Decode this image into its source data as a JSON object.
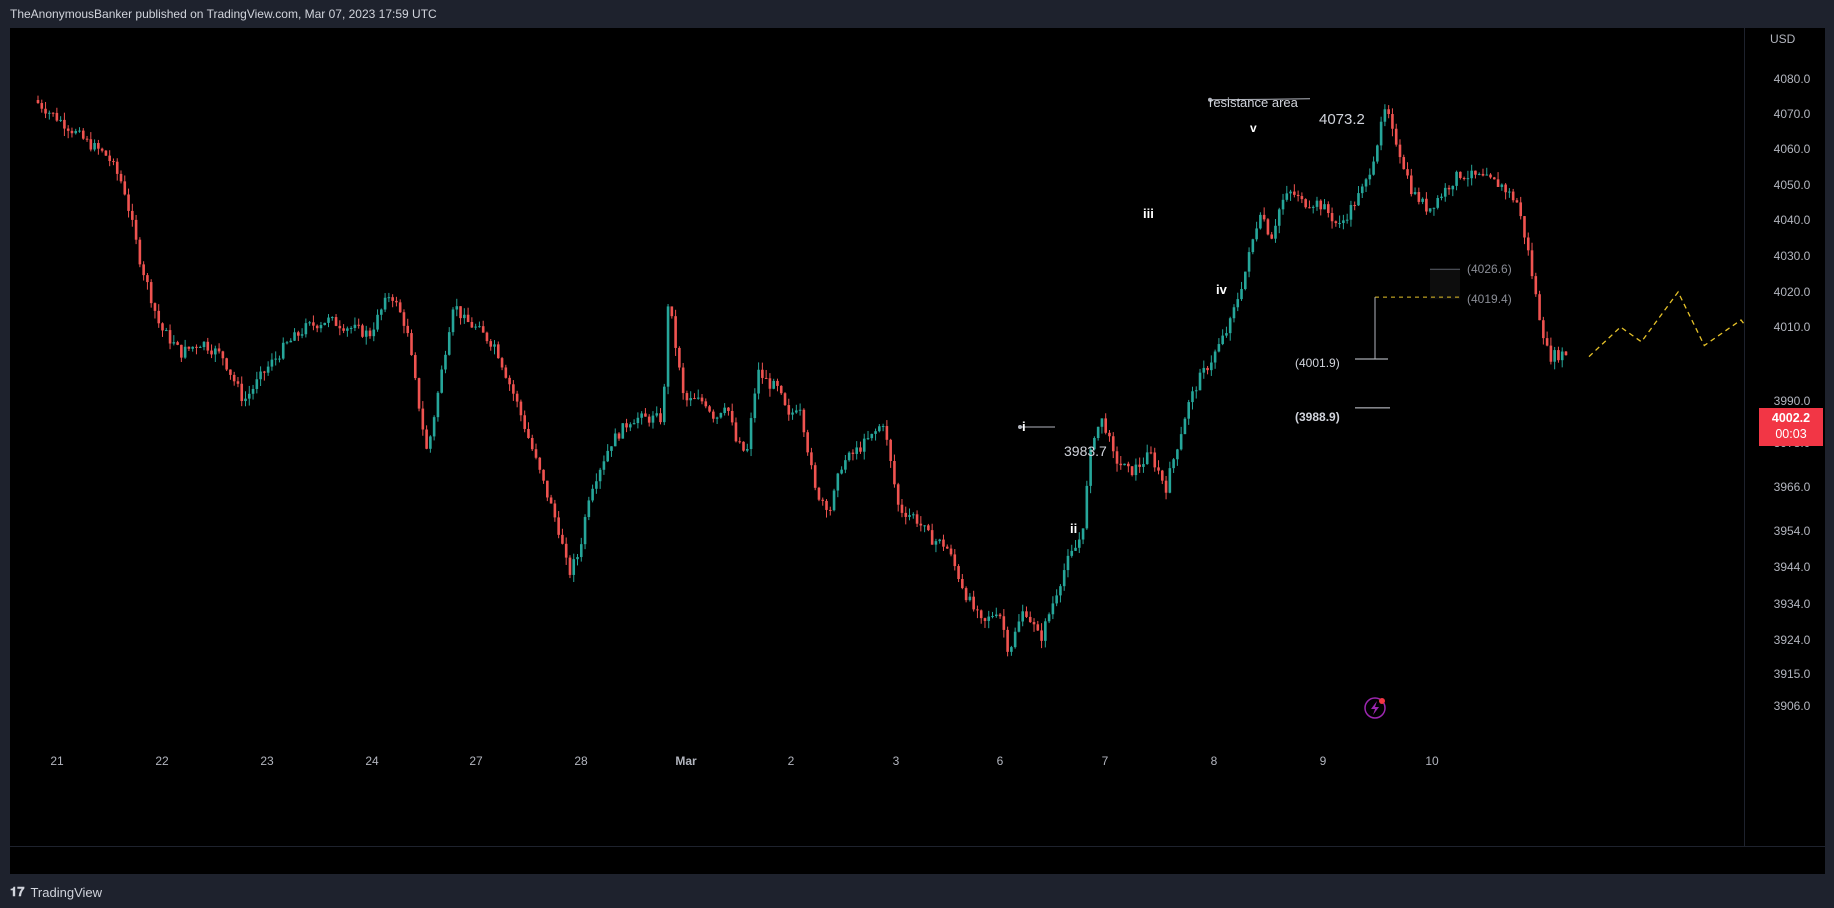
{
  "header": {
    "publish_line": "TheAnonymousBanker published on TradingView.com, Mar 07, 2023 17:59 UTC"
  },
  "footer": {
    "brand": "TradingView"
  },
  "price_axis": {
    "currency": "USD",
    "labels": [
      "4080.0",
      "4070.0",
      "4060.0",
      "4050.0",
      "4040.0",
      "4030.0",
      "4020.0",
      "4010.0",
      "3990.0",
      "3978.0",
      "3966.0",
      "3954.0",
      "3944.0",
      "3934.0",
      "3924.0",
      "3915.0",
      "3906.0"
    ],
    "last_price": "4002.2",
    "countdown": "00:03",
    "last_price_color": "#f23645"
  },
  "time_axis": {
    "labels": [
      "21",
      "22",
      "23",
      "24",
      "27",
      "28",
      "Mar",
      "2",
      "3",
      "6",
      "7",
      "8",
      "9",
      "10"
    ]
  },
  "annotations": {
    "resistance_label": "resistance area",
    "resistance_value": "4073.2",
    "wave_i": "i",
    "wave_ii": "ii",
    "wave_iii": "iii",
    "wave_iv": "iv",
    "wave_v": "v",
    "level_i": "3983.7",
    "target_1": "(4026.6)",
    "target_2": "(4019.4)",
    "level_current": "(4001.9)",
    "level_support": "(3988.9)"
  },
  "colors": {
    "up": "#26a69a",
    "down": "#ef5350",
    "projection": "#e6c229",
    "background": "#000000",
    "frame": "#1e222d"
  },
  "icons": {
    "lightning": "lightning-icon",
    "tv_logo": "tradingview-logo-icon"
  },
  "chart_data": {
    "type": "candlestick",
    "instrument_currency": "USD",
    "x_labels": [
      "21",
      "22",
      "23",
      "24",
      "27",
      "28",
      "Mar",
      "2",
      "3",
      "6",
      "7",
      "8",
      "9",
      "10"
    ],
    "ylim": [
      3900,
      4090
    ],
    "price_path": [
      [
        0.0,
        4074
      ],
      [
        0.3,
        4067
      ],
      [
        0.5,
        4062
      ],
      [
        0.7,
        4058
      ],
      [
        0.85,
        4050
      ],
      [
        1.0,
        4030
      ],
      [
        1.2,
        4010
      ],
      [
        1.4,
        4003
      ],
      [
        1.6,
        4006
      ],
      [
        1.8,
        4002
      ],
      [
        2.0,
        3990
      ],
      [
        2.2,
        3998
      ],
      [
        2.4,
        4005
      ],
      [
        2.6,
        4010
      ],
      [
        2.8,
        4012
      ],
      [
        3.0,
        4010
      ],
      [
        3.2,
        4008
      ],
      [
        3.4,
        4020
      ],
      [
        3.55,
        4010
      ],
      [
        3.75,
        3975
      ],
      [
        3.9,
        4000
      ],
      [
        4.0,
        4017
      ],
      [
        4.1,
        4012
      ],
      [
        4.2,
        4010
      ],
      [
        4.4,
        4005
      ],
      [
        4.6,
        3990
      ],
      [
        4.8,
        3972
      ],
      [
        5.0,
        3955
      ],
      [
        5.1,
        3942
      ],
      [
        5.2,
        3948
      ],
      [
        5.3,
        3965
      ],
      [
        5.5,
        3978
      ],
      [
        5.7,
        3985
      ],
      [
        5.9,
        3985
      ],
      [
        6.0,
        3985
      ],
      [
        6.05,
        4018
      ],
      [
        6.2,
        3990
      ],
      [
        6.4,
        3990
      ],
      [
        6.5,
        3985
      ],
      [
        6.6,
        3990
      ],
      [
        6.7,
        3978
      ],
      [
        6.8,
        3975
      ],
      [
        6.9,
        3998
      ],
      [
        7.0,
        3995
      ],
      [
        7.1,
        3993
      ],
      [
        7.2,
        3985
      ],
      [
        7.3,
        3990
      ],
      [
        7.45,
        3965
      ],
      [
        7.6,
        3960
      ],
      [
        7.7,
        3972
      ],
      [
        8.0,
        3980
      ],
      [
        8.1,
        3984
      ],
      [
        8.25,
        3960
      ],
      [
        8.4,
        3958
      ],
      [
        8.55,
        3952
      ],
      [
        8.7,
        3950
      ],
      [
        8.9,
        3936
      ],
      [
        9.05,
        3928
      ],
      [
        9.2,
        3933
      ],
      [
        9.3,
        3921
      ],
      [
        9.45,
        3933
      ],
      [
        9.6,
        3924
      ],
      [
        9.75,
        3937
      ],
      [
        9.85,
        3945
      ],
      [
        9.95,
        3950
      ],
      [
        10.0,
        3954
      ],
      [
        10.1,
        3980
      ],
      [
        10.2,
        3985
      ],
      [
        10.3,
        3974
      ],
      [
        10.45,
        3970
      ],
      [
        10.55,
        3972
      ],
      [
        10.65,
        3975
      ],
      [
        10.8,
        3966
      ],
      [
        10.95,
        3982
      ],
      [
        11.0,
        3988
      ],
      [
        11.1,
        3995
      ],
      [
        11.25,
        4002
      ],
      [
        11.4,
        4010
      ],
      [
        11.55,
        4025
      ],
      [
        11.7,
        4043
      ],
      [
        11.8,
        4035
      ],
      [
        11.9,
        4045
      ],
      [
        12.0,
        4048
      ],
      [
        12.1,
        4045
      ],
      [
        12.25,
        4045
      ],
      [
        12.35,
        4042
      ],
      [
        12.45,
        4038
      ],
      [
        12.6,
        4045
      ],
      [
        12.7,
        4050
      ],
      [
        12.8,
        4060
      ],
      [
        12.9,
        4072
      ],
      [
        12.95,
        4065
      ],
      [
        13.0,
        4062
      ],
      [
        13.15,
        4048
      ],
      [
        13.3,
        4043
      ],
      [
        13.5,
        4050
      ],
      [
        13.6,
        4053
      ],
      [
        13.8,
        4052
      ],
      [
        14.0,
        4050
      ],
      [
        14.15,
        4045
      ],
      [
        14.25,
        4032
      ],
      [
        14.35,
        4015
      ],
      [
        14.45,
        4002
      ],
      [
        14.6,
        4003
      ]
    ],
    "projection_path": [
      [
        14.8,
        4002
      ],
      [
        15.1,
        4010
      ],
      [
        15.3,
        4006
      ],
      [
        15.65,
        4020
      ],
      [
        15.9,
        4005
      ],
      [
        16.25,
        4012
      ],
      [
        16.85,
        3990
      ]
    ],
    "levels": {
      "resistance": 4073.2,
      "wave_i_high": 3983.7,
      "current": 4001.9,
      "support": 3988.9,
      "target_1": 4026.6,
      "target_2": 4019.4,
      "last": 4002.2
    }
  }
}
